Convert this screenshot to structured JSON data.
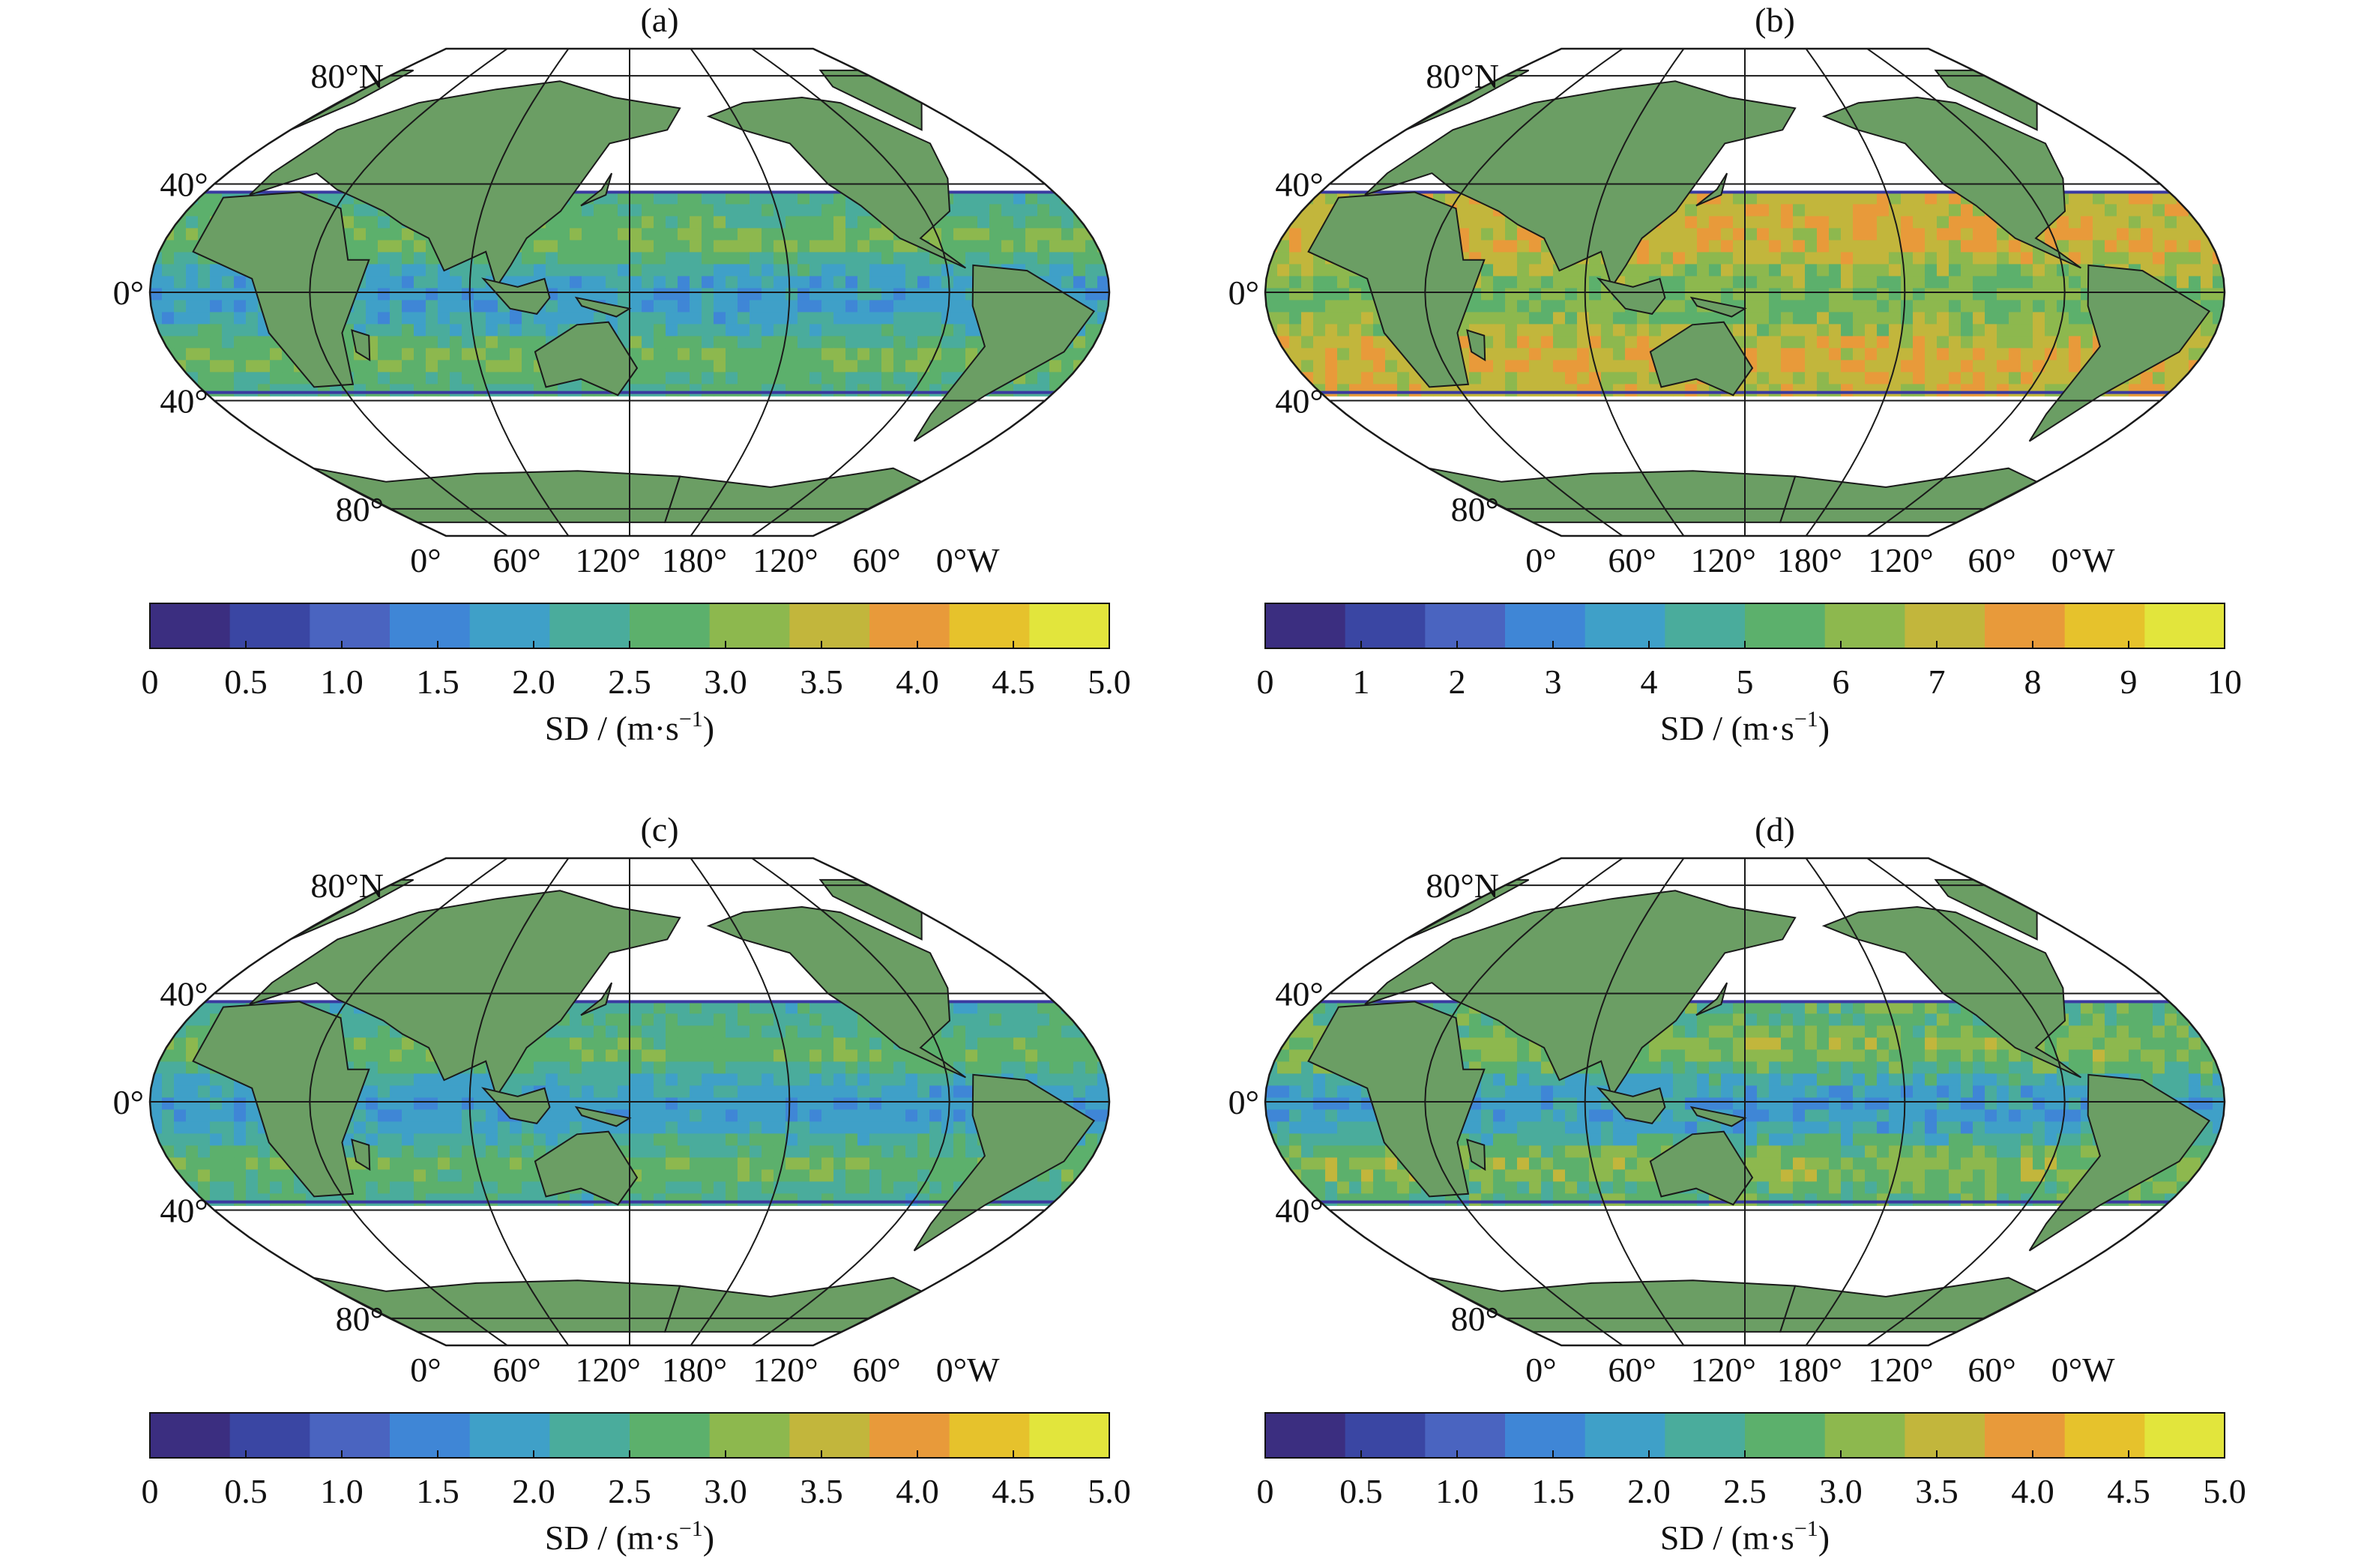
{
  "figure": {
    "panels": [
      {
        "label": "(a)",
        "lat_labels": [
          "80°N",
          "40°",
          "0°",
          "40°",
          "80°"
        ],
        "lon_labels": [
          "0°",
          "60°",
          "120°",
          "180°",
          "120°",
          "60°",
          "0°W"
        ],
        "colorbar": {
          "ticks": [
            "0",
            "0.5",
            "1.0",
            "1.5",
            "2.0",
            "2.5",
            "3.0",
            "3.5",
            "4.0",
            "4.5",
            "5.0"
          ],
          "min": 0,
          "max": 5,
          "label_main": "SD / (m·s",
          "label_exp": "−1",
          "label_close": ")"
        },
        "field": {
          "band": "mid",
          "base": 2.4,
          "equator_bias": -0.6,
          "noise": 0.35
        }
      },
      {
        "label": "(b)",
        "lat_labels": [
          "80°N",
          "40°",
          "0°",
          "40°",
          "80°"
        ],
        "lon_labels": [
          "0°",
          "60°",
          "120°",
          "180°",
          "120°",
          "60°",
          "0°W"
        ],
        "colorbar": {
          "ticks": [
            "0",
            "1",
            "2",
            "3",
            "4",
            "5",
            "6",
            "7",
            "8",
            "9",
            "10"
          ],
          "min": 0,
          "max": 10,
          "label_main": "SD / (m·s",
          "label_exp": "−1",
          "label_close": ")"
        },
        "field": {
          "band": "high",
          "base": 7.0,
          "equator_bias": -1.2,
          "noise": 0.8
        }
      },
      {
        "label": "(c)",
        "lat_labels": [
          "80°N",
          "40°",
          "0°",
          "40°",
          "80°"
        ],
        "lon_labels": [
          "0°",
          "60°",
          "120°",
          "180°",
          "120°",
          "60°",
          "0°W"
        ],
        "colorbar": {
          "ticks": [
            "0",
            "0.5",
            "1.0",
            "1.5",
            "2.0",
            "2.5",
            "3.0",
            "3.5",
            "4.0",
            "4.5",
            "5.0"
          ],
          "min": 0,
          "max": 5,
          "label_main": "SD / (m·s",
          "label_exp": "−1",
          "label_close": ")"
        },
        "field": {
          "band": "mid",
          "base": 2.3,
          "equator_bias": -0.5,
          "noise": 0.3
        }
      },
      {
        "label": "(d)",
        "lat_labels": [
          "80°N",
          "40°",
          "0°",
          "40°",
          "80°"
        ],
        "lon_labels": [
          "0°",
          "60°",
          "120°",
          "180°",
          "120°",
          "60°",
          "0°W"
        ],
        "colorbar": {
          "ticks": [
            "0",
            "0.5",
            "1.0",
            "1.5",
            "2.0",
            "2.5",
            "3.0",
            "3.5",
            "4.0",
            "4.5",
            "5.0"
          ],
          "min": 0,
          "max": 5,
          "label_main": "SD / (m·s",
          "label_exp": "−1",
          "label_close": ")"
        },
        "field": {
          "band": "mixed",
          "base": 2.6,
          "equator_bias": -0.8,
          "noise": 0.4
        }
      }
    ],
    "colors": {
      "land": "#6b9e64",
      "ocean_outside": "#ffffff",
      "graticule": "#1a1a1a",
      "colormap": [
        "#3b2e80",
        "#3a46a3",
        "#4a64c0",
        "#3f86d6",
        "#3fa0c8",
        "#4aac9c",
        "#5cb06c",
        "#8db84e",
        "#c2b63c",
        "#e89a3a",
        "#e6c22c",
        "#e2e53c"
      ]
    }
  }
}
